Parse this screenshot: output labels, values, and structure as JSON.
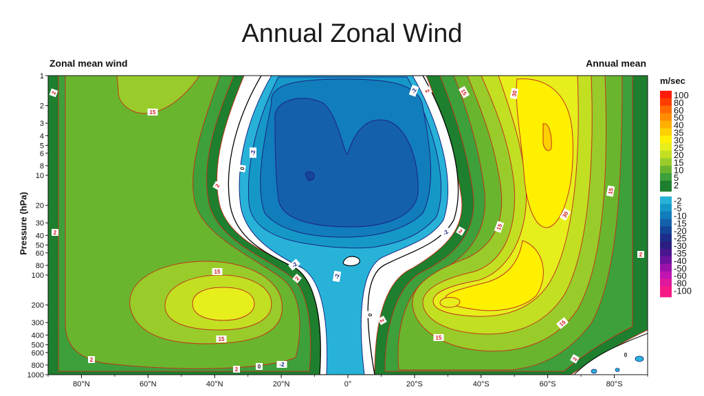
{
  "slide": {
    "title": "Annual Zonal Wind"
  },
  "chart_data": {
    "type": "contour",
    "left_title": "Zonal mean wind",
    "right_title": "Annual mean",
    "ylabel": "Pressure (hPa)",
    "y_scale": "log",
    "y_ticks": [
      "1",
      "2",
      "3",
      "4",
      "5",
      "6",
      "8",
      "10",
      "20",
      "30",
      "40",
      "50",
      "60",
      "80",
      "100",
      "200",
      "300",
      "400",
      "500",
      "600",
      "800",
      "1000"
    ],
    "x_ticks": [
      "80°N",
      "60°N",
      "40°N",
      "20°N",
      "0°",
      "20°S",
      "40°S",
      "60°S",
      "80°S"
    ],
    "colorbar": {
      "unit": "m/sec",
      "levels": [
        {
          "label": "100",
          "color": "#ff1a0a"
        },
        {
          "label": "80",
          "color": "#ff3d00"
        },
        {
          "label": "60",
          "color": "#ff6a00"
        },
        {
          "label": "50",
          "color": "#ff8c00"
        },
        {
          "label": "40",
          "color": "#ffb000"
        },
        {
          "label": "35",
          "color": "#ffd000"
        },
        {
          "label": "30",
          "color": "#fff000"
        },
        {
          "label": "25",
          "color": "#e6ee1c"
        },
        {
          "label": "20",
          "color": "#c2df22"
        },
        {
          "label": "15",
          "color": "#99cc2a"
        },
        {
          "label": "10",
          "color": "#6ab52e"
        },
        {
          "label": "5",
          "color": "#3ea03a"
        },
        {
          "label": "2",
          "color": "#1e7f2e"
        },
        {
          "label": "-2",
          "color": "#28b2d8"
        },
        {
          "label": "-5",
          "color": "#1598c8"
        },
        {
          "label": "-10",
          "color": "#127dbb"
        },
        {
          "label": "-15",
          "color": "#1560ab"
        },
        {
          "label": "-20",
          "color": "#14469a"
        },
        {
          "label": "-25",
          "color": "#1c2d8a"
        },
        {
          "label": "-30",
          "color": "#2b1e80"
        },
        {
          "label": "-35",
          "color": "#4a1690"
        },
        {
          "label": "-40",
          "color": "#6e139e"
        },
        {
          "label": "-50",
          "color": "#9a12aa"
        },
        {
          "label": "-60",
          "color": "#c114b0"
        },
        {
          "label": "-80",
          "color": "#e0189c"
        },
        {
          "label": "-100",
          "color": "#f61a86"
        }
      ]
    },
    "contour_labels": [
      "2",
      "15",
      "-2",
      "0",
      "30"
    ],
    "features": [
      {
        "region": "NH stratosphere 60°N",
        "max_ms": 15
      },
      {
        "region": "NH subtropical jet ~35°N 200 hPa",
        "max_ms": 25
      },
      {
        "region": "Tropical stratosphere",
        "min_ms": -25
      },
      {
        "region": "SH polar night jet ~60°S 4 hPa",
        "max_ms": 35
      },
      {
        "region": "SH subtropical jet ~30°S 200 hPa",
        "max_ms": 30
      }
    ],
    "colors": {
      "land_mask": "#ffffff",
      "zero_line": "#000000",
      "pos_line": "#c0341c",
      "neg_line": "#1a237e"
    }
  }
}
